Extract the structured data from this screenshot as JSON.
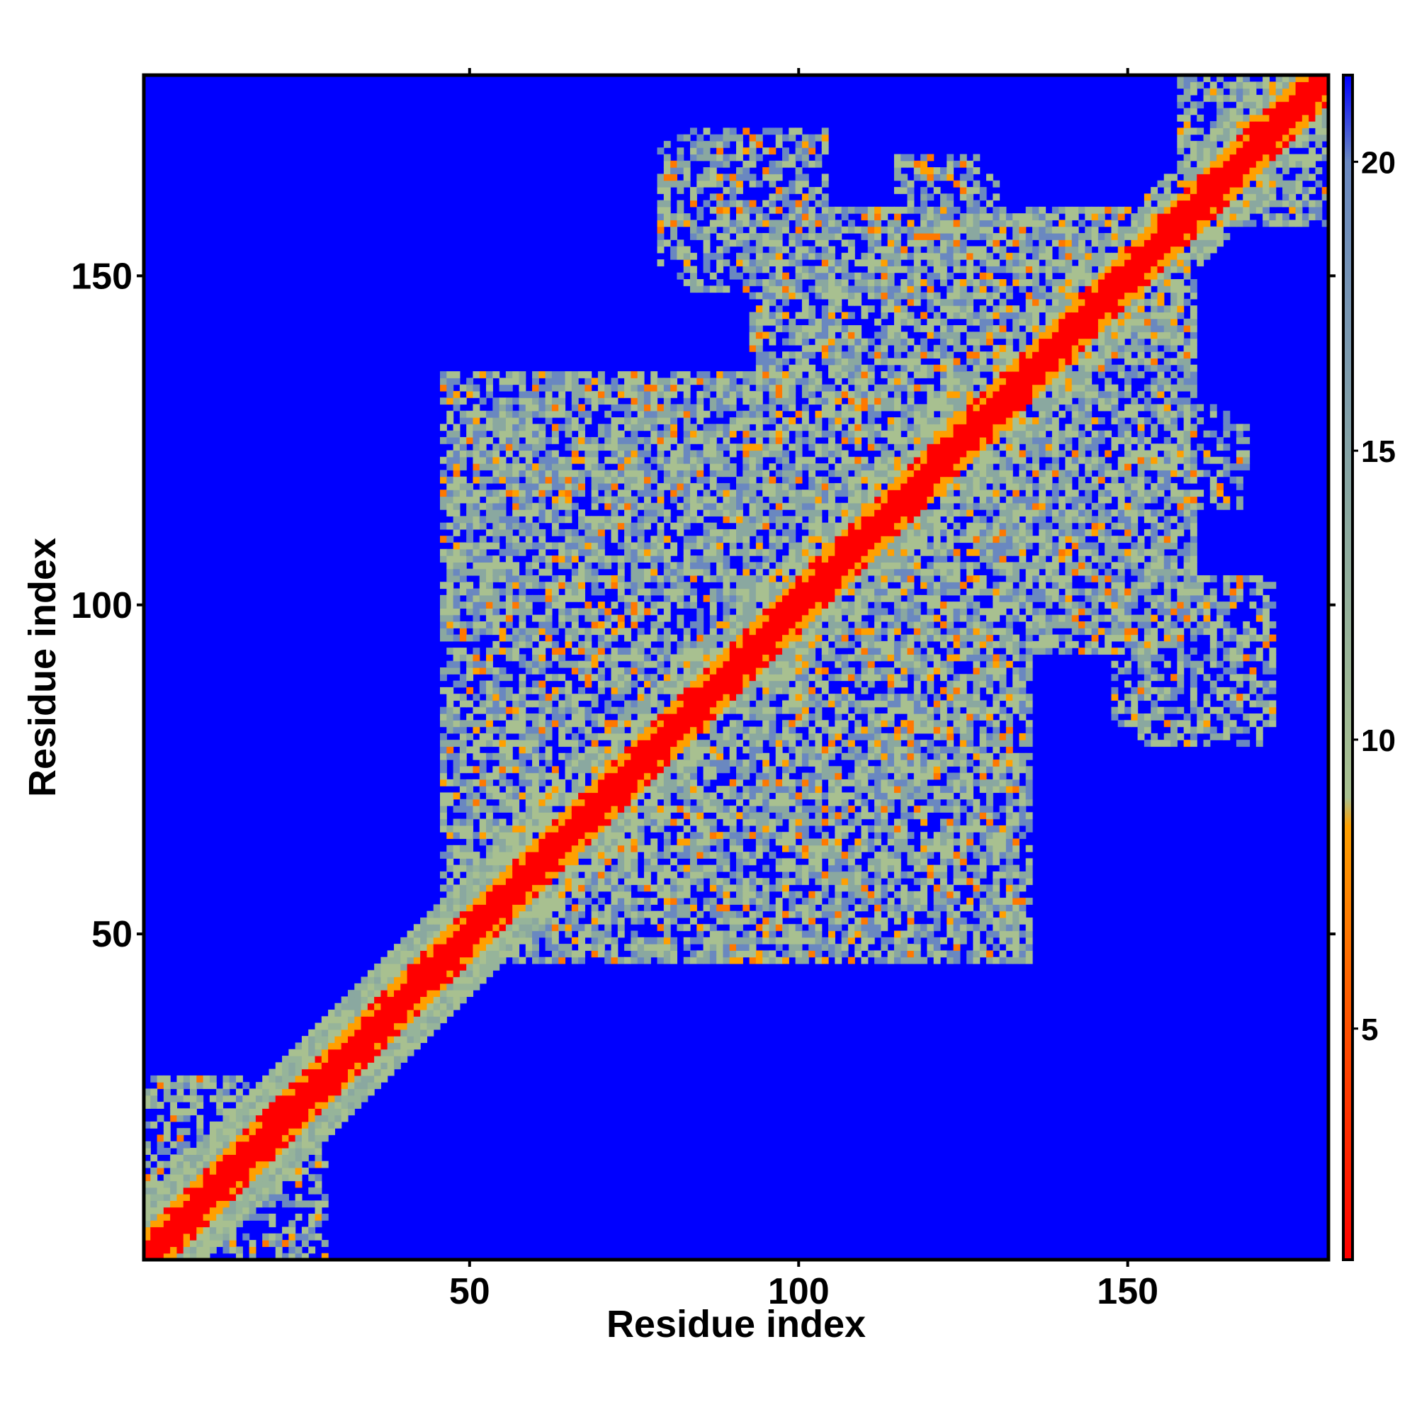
{
  "chart_data": {
    "type": "heatmap",
    "title": "",
    "xlabel": "Residue index",
    "ylabel": "Residue index",
    "xlim": [
      1,
      180
    ],
    "ylim": [
      1,
      180
    ],
    "x_ticks": [
      50,
      100,
      150
    ],
    "y_ticks": [
      50,
      100,
      150
    ],
    "x_tick_labels": [
      "50",
      "100",
      "150"
    ],
    "y_tick_labels": [
      "50",
      "100",
      "150"
    ],
    "colorbar": {
      "range": [
        1,
        21.5
      ],
      "ticks": [
        5,
        10,
        15,
        20
      ],
      "tick_labels": [
        "5",
        "10",
        "15",
        "20"
      ],
      "stops": [
        {
          "value": 1,
          "color": "#ff0000"
        },
        {
          "value": 5,
          "color": "#ff5000"
        },
        {
          "value": 8.5,
          "color": "#ffa000"
        },
        {
          "value": 9,
          "color": "#a8c090"
        },
        {
          "value": 14,
          "color": "#8aa8a0"
        },
        {
          "value": 20,
          "color": "#6a88c0"
        },
        {
          "value": 21.5,
          "color": "#0000ff"
        }
      ]
    },
    "background_value": 21.5,
    "background_color": "#0000ff",
    "diagonal_band": {
      "core_width": 2,
      "orange_width": 4,
      "halo_width": 9
    },
    "contact_blocks": [
      {
        "x": [
          3,
          28
        ],
        "y": [
          1,
          26
        ],
        "level": 0.55
      },
      {
        "x": [
          47,
          100
        ],
        "y": [
          46,
          82
        ],
        "level": 0.7
      },
      {
        "x": [
          46,
          110
        ],
        "y": [
          80,
          135
        ],
        "level": 0.75
      },
      {
        "x": [
          93,
          150
        ],
        "y": [
          97,
          160
        ],
        "level": 0.75
      },
      {
        "x": [
          113,
          125
        ],
        "y": [
          50,
          88
        ],
        "level": 0.6
      },
      {
        "x": [
          112,
          140
        ],
        "y": [
          100,
          155
        ],
        "level": 0.6
      },
      {
        "x": [
          79,
          102
        ],
        "y": [
          152,
          170
        ],
        "level": 0.6
      },
      {
        "x": [
          115,
          127
        ],
        "y": [
          144,
          168
        ],
        "level": 0.55
      },
      {
        "x": [
          148,
          172
        ],
        "y": [
          82,
          104
        ],
        "level": 0.55
      },
      {
        "x": [
          138,
          165
        ],
        "y": [
          118,
          130
        ],
        "level": 0.5
      },
      {
        "x": [
          158,
          178
        ],
        "y": [
          160,
          180
        ],
        "level": 0.65
      },
      {
        "x": [
          74,
          98
        ],
        "y": [
          57,
          70
        ],
        "level": 0.55
      }
    ]
  }
}
